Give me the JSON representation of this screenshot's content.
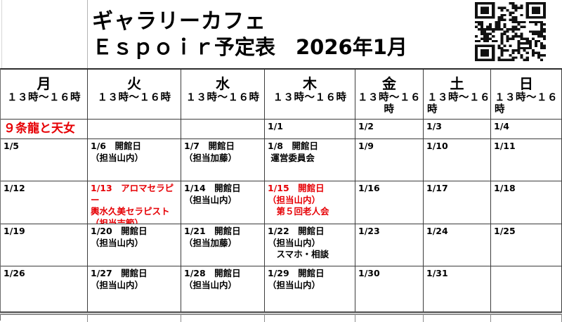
{
  "title": {
    "line1": "ギャラリーカフェ",
    "line2": "Ｅｓｐｏｉｒ予定表　2026年1月"
  },
  "qr": {
    "icon": "qr-code"
  },
  "colors": {
    "accent_red": "#e60005",
    "text": "#000000",
    "grid_line": "#3c3c3c"
  },
  "header": {
    "columns": [
      {
        "key": "mon",
        "day": "月",
        "time_lines": [
          "１３時～１６時"
        ],
        "align": "center"
      },
      {
        "key": "tue",
        "day": "火",
        "time_lines": [
          "１３時～１６時"
        ],
        "align": "center"
      },
      {
        "key": "wed",
        "day": "水",
        "time_lines": [
          "１３時～１６時"
        ],
        "align": "center"
      },
      {
        "key": "thu",
        "day": "木",
        "time_lines": [
          "１３時～１６時"
        ],
        "align": "center"
      },
      {
        "key": "fri",
        "day": "金",
        "time_lines": [
          "１３時～１６",
          "時"
        ],
        "align": "center"
      },
      {
        "key": "sat",
        "day": "土",
        "time_lines": [
          "１３時～１６",
          "時"
        ],
        "align": "left"
      },
      {
        "key": "sun",
        "day": "日",
        "time_lines": [
          "１３時～１６",
          "時"
        ],
        "align": "left"
      }
    ]
  },
  "weeks": [
    {
      "cells": [
        {
          "name": "exhibit-note",
          "lines": [
            "９条龍と天女"
          ],
          "red": true,
          "big": true
        },
        {
          "name": "empty",
          "lines": []
        },
        {
          "name": "empty",
          "lines": []
        },
        {
          "name": "day-1-1",
          "lines": [
            "1/1"
          ]
        },
        {
          "name": "day-1-2",
          "lines": [
            "1/2"
          ]
        },
        {
          "name": "day-1-3",
          "lines": [
            "1/3"
          ]
        },
        {
          "name": "day-1-4",
          "lines": [
            "1/4"
          ]
        }
      ]
    },
    {
      "cells": [
        {
          "name": "day-1-5",
          "lines": [
            "1/5"
          ]
        },
        {
          "name": "day-1-6",
          "lines": [
            "1/6　開館日",
            "（担当山内）"
          ]
        },
        {
          "name": "day-1-7",
          "lines": [
            "1/7　開館日",
            "（担当加藤）"
          ]
        },
        {
          "name": "day-1-8",
          "lines": [
            "1/8　開館日",
            " 運営委員会"
          ]
        },
        {
          "name": "day-1-9",
          "lines": [
            "1/9"
          ]
        },
        {
          "name": "day-1-10",
          "lines": [
            "1/10"
          ]
        },
        {
          "name": "day-1-11",
          "lines": [
            "1/11"
          ]
        }
      ]
    },
    {
      "cells": [
        {
          "name": "day-1-12",
          "lines": [
            "1/12"
          ]
        },
        {
          "name": "day-1-13",
          "lines": [
            "1/13　アロマセラピー",
            "輿水久美セラピスト",
            "（担当吉範）"
          ],
          "red": true
        },
        {
          "name": "day-1-14",
          "lines": [
            "1/14　開館日",
            "（担当山内）"
          ]
        },
        {
          "name": "day-1-15",
          "lines": [
            "1/15　開館日",
            "（担当山内）",
            "　第５回老人会"
          ],
          "red": true
        },
        {
          "name": "day-1-16",
          "lines": [
            "1/16"
          ]
        },
        {
          "name": "day-1-17",
          "lines": [
            "1/17"
          ]
        },
        {
          "name": "day-1-18",
          "lines": [
            "1/18"
          ]
        }
      ]
    },
    {
      "cells": [
        {
          "name": "day-1-19",
          "lines": [
            "1/19"
          ]
        },
        {
          "name": "day-1-20",
          "lines": [
            "1/20　開館日",
            "（担当山内）"
          ]
        },
        {
          "name": "day-1-21",
          "lines": [
            "1/21　開館日",
            "（担当加藤）"
          ]
        },
        {
          "name": "day-1-22",
          "lines": [
            "1/22　開館日",
            "（担当山内）",
            "　スマホ・相談"
          ]
        },
        {
          "name": "day-1-23",
          "lines": [
            "1/23"
          ]
        },
        {
          "name": "day-1-24",
          "lines": [
            "1/24"
          ]
        },
        {
          "name": "day-1-25",
          "lines": [
            "1/25"
          ]
        }
      ]
    },
    {
      "cells": [
        {
          "name": "day-1-26",
          "lines": [
            "1/26"
          ]
        },
        {
          "name": "day-1-27",
          "lines": [
            "1/27　開館日",
            "（担当山内）"
          ]
        },
        {
          "name": "day-1-28",
          "lines": [
            "1/28　開館日",
            "（担当山内）"
          ]
        },
        {
          "name": "day-1-29",
          "lines": [
            "1/29　開館日",
            "（担当山内）"
          ]
        },
        {
          "name": "day-1-30",
          "lines": [
            "1/30"
          ]
        },
        {
          "name": "day-1-31",
          "lines": [
            "1/31"
          ]
        },
        {
          "name": "empty",
          "lines": []
        }
      ]
    }
  ]
}
